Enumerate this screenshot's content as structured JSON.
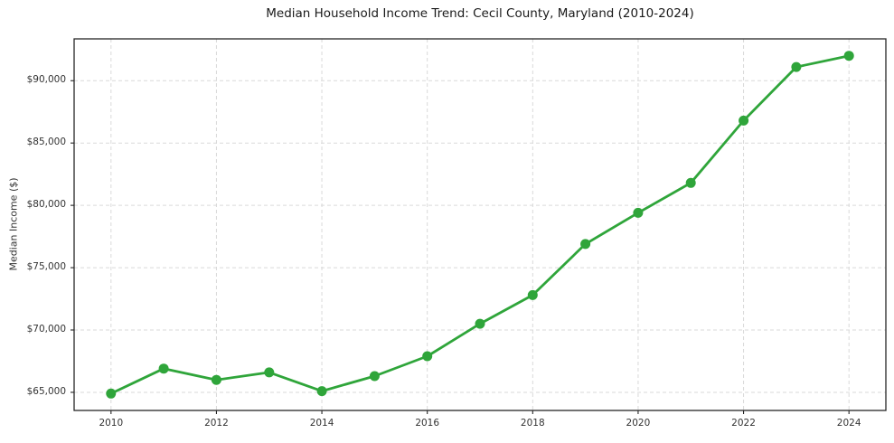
{
  "chart_data": {
    "type": "line",
    "title": "Median Household Income Trend: Cecil County, Maryland (2010-2024)",
    "xlabel": "",
    "ylabel": "Median Income ($)",
    "x": [
      2010,
      2011,
      2012,
      2013,
      2014,
      2015,
      2016,
      2017,
      2018,
      2019,
      2020,
      2021,
      2022,
      2023,
      2024
    ],
    "series": [
      {
        "name": "Median Household Income",
        "values": [
          64900,
          66900,
          66000,
          66600,
          65100,
          66300,
          67900,
          70500,
          72800,
          76900,
          79400,
          81800,
          86800,
          91100,
          92000
        ]
      }
    ],
    "xlim": [
      2009.3,
      2024.7
    ],
    "ylim": [
      63545,
      93355
    ],
    "xticks": {
      "values": [
        2010,
        2012,
        2014,
        2016,
        2018,
        2020,
        2022,
        2024
      ],
      "labels": [
        "2010",
        "2012",
        "2014",
        "2016",
        "2018",
        "2020",
        "2022",
        "2024"
      ]
    },
    "yticks": {
      "values": [
        65000,
        70000,
        75000,
        80000,
        85000,
        90000
      ],
      "labels": [
        "$65,000",
        "$70,000",
        "$75,000",
        "$80,000",
        "$85,000",
        "$90,000"
      ]
    },
    "grid": {
      "visible": true,
      "style": "dashed"
    },
    "legend": {
      "visible": false
    },
    "marker": "circle",
    "colors": {
      "line": "#2fa53a",
      "marker": "#2fa53a",
      "grid": "#d9d9d9",
      "frame": "#262626",
      "title_text": "#1a1a1a",
      "tick_text": "#333333"
    }
  }
}
